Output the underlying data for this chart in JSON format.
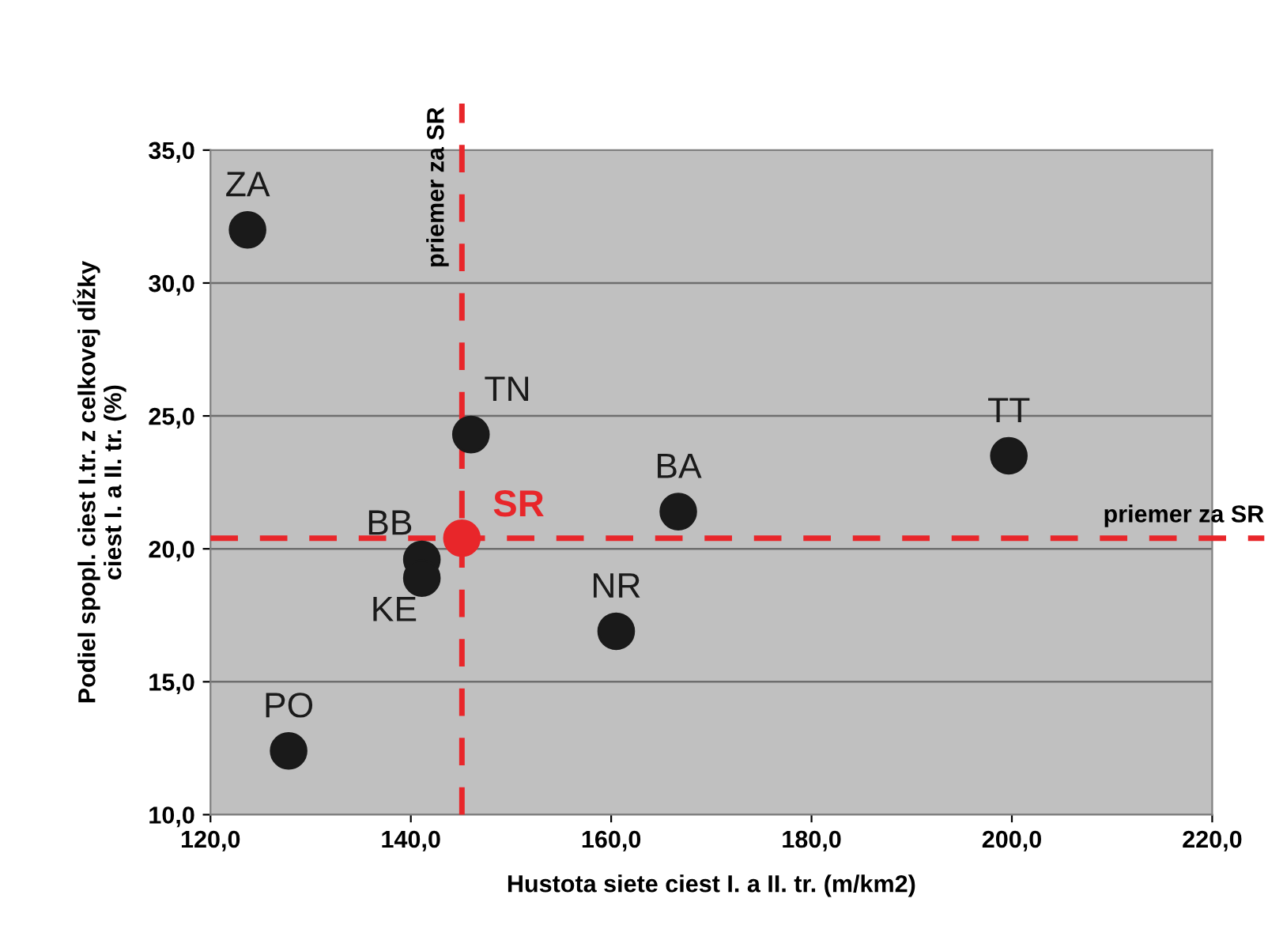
{
  "chart_data": {
    "type": "scatter",
    "xlabel": "Hustota siete ciest I. a II. tr. (m/km2)",
    "ylabel": "Podiel spopl. ciest I.tr. z celkovej dĺžky\nciest I. a II. tr. (%)",
    "x": [
      123.7,
      146.0,
      141.1,
      141.1,
      166.7,
      160.5,
      127.8,
      199.7
    ],
    "series": [
      {
        "color": "#1a1a1a",
        "values": [
          32.0,
          24.3,
          19.6,
          18.9,
          21.4,
          16.9,
          12.4,
          23.5
        ]
      },
      {
        "name": "SR",
        "color": "#e8262a",
        "x": [
          145.1
        ],
        "values": [
          20.4
        ]
      }
    ],
    "annotations": [
      {
        "text": "ZA",
        "x": 123.7,
        "y": 32.0
      },
      {
        "text": "TN",
        "x": 146.0,
        "y": 24.3
      },
      {
        "text": "BB",
        "x": 141.1,
        "y": 19.6
      },
      {
        "text": "KE",
        "x": 141.1,
        "y": 18.9
      },
      {
        "text": "BA",
        "x": 166.7,
        "y": 21.4
      },
      {
        "text": "NR",
        "x": 160.5,
        "y": 16.9
      },
      {
        "text": "PO",
        "x": 127.8,
        "y": 12.4
      },
      {
        "text": "TT",
        "x": 199.7,
        "y": 23.5
      }
    ],
    "ref_lines": [
      {
        "axis": "x",
        "value": 145.1,
        "label": "priemer za SR",
        "color": "#e8262a",
        "line_style": "dashed"
      },
      {
        "axis": "y",
        "value": 20.4,
        "label": "priemer za SR",
        "color": "#e8262a",
        "line_style": "dashed"
      }
    ],
    "xlim": [
      120,
      220
    ],
    "xticks": [
      {
        "value": 120,
        "label": "120,0"
      },
      {
        "value": 140,
        "label": "140,0"
      },
      {
        "value": 160,
        "label": "160,0"
      },
      {
        "value": 180,
        "label": "180,0"
      },
      {
        "value": 200,
        "label": "200,0"
      },
      {
        "value": 220,
        "label": "220,0"
      }
    ],
    "ylim": [
      10,
      35
    ],
    "yticks": [
      {
        "value": 10,
        "label": "10,0"
      },
      {
        "value": 15,
        "label": "15,0"
      },
      {
        "value": 20,
        "label": "20,0"
      },
      {
        "value": 25,
        "label": "25,0"
      },
      {
        "value": 30,
        "label": "30,0"
      },
      {
        "value": 35,
        "label": "35,0"
      }
    ],
    "grid": "y",
    "marker": "circle",
    "legend": false
  }
}
